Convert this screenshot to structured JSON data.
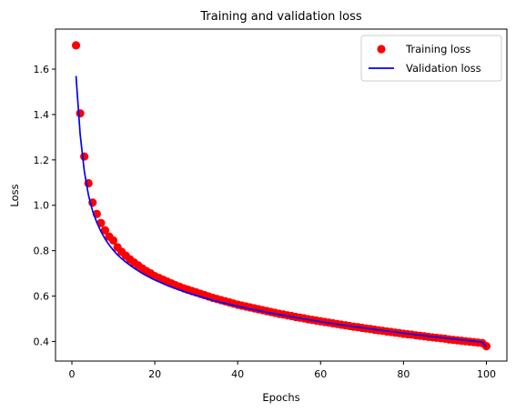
{
  "chart_data": {
    "type": "scatter",
    "title": "Training and validation loss",
    "xlabel": "Epochs",
    "ylabel": "Loss",
    "xlim": [
      -3.95,
      104.95
    ],
    "ylim": [
      0.3135,
      1.7765
    ],
    "xticks": [
      0,
      20,
      40,
      60,
      80,
      100
    ],
    "xtick_labels": [
      "0",
      "20",
      "40",
      "60",
      "80",
      "100"
    ],
    "yticks": [
      0.4,
      0.6,
      0.8,
      1.0,
      1.2,
      1.4,
      1.6
    ],
    "ytick_labels": [
      "0.4",
      "0.6",
      "0.8",
      "1.0",
      "1.2",
      "1.4",
      "1.6"
    ],
    "grid": false,
    "legend_position": "top-right",
    "series": [
      {
        "name": "Training loss",
        "style": "markers",
        "color": "#ff0000",
        "x": [
          1,
          2,
          3,
          4,
          5,
          6,
          7,
          8,
          9,
          10,
          11,
          12,
          13,
          14,
          15,
          16,
          17,
          18,
          19,
          20,
          21,
          22,
          23,
          24,
          25,
          26,
          27,
          28,
          29,
          30,
          31,
          32,
          33,
          34,
          35,
          36,
          37,
          38,
          39,
          40,
          41,
          42,
          43,
          44,
          45,
          46,
          47,
          48,
          49,
          50,
          51,
          52,
          53,
          54,
          55,
          56,
          57,
          58,
          59,
          60,
          61,
          62,
          63,
          64,
          65,
          66,
          67,
          68,
          69,
          70,
          71,
          72,
          73,
          74,
          75,
          76,
          77,
          78,
          79,
          80,
          81,
          82,
          83,
          84,
          85,
          86,
          87,
          88,
          89,
          90,
          91,
          92,
          93,
          94,
          95,
          96,
          97,
          98,
          99,
          100
        ],
        "values": [
          1.705,
          1.405,
          1.215,
          1.097,
          1.012,
          0.962,
          0.922,
          0.89,
          0.862,
          0.845,
          0.815,
          0.795,
          0.778,
          0.762,
          0.748,
          0.735,
          0.722,
          0.71,
          0.7,
          0.688,
          0.68,
          0.672,
          0.664,
          0.656,
          0.648,
          0.641,
          0.634,
          0.628,
          0.622,
          0.616,
          0.61,
          0.604,
          0.598,
          0.592,
          0.587,
          0.582,
          0.577,
          0.572,
          0.567,
          0.562,
          0.558,
          0.554,
          0.55,
          0.546,
          0.542,
          0.538,
          0.534,
          0.53,
          0.526,
          0.522,
          0.519,
          0.515,
          0.512,
          0.508,
          0.505,
          0.502,
          0.498,
          0.495,
          0.492,
          0.489,
          0.486,
          0.483,
          0.48,
          0.477,
          0.474,
          0.471,
          0.468,
          0.465,
          0.463,
          0.46,
          0.457,
          0.455,
          0.452,
          0.449,
          0.447,
          0.444,
          0.442,
          0.439,
          0.437,
          0.434,
          0.432,
          0.43,
          0.427,
          0.425,
          0.423,
          0.42,
          0.418,
          0.416,
          0.414,
          0.412,
          0.409,
          0.407,
          0.405,
          0.403,
          0.401,
          0.399,
          0.397,
          0.395,
          0.393,
          0.379
        ]
      },
      {
        "name": "Validation loss",
        "style": "line",
        "color": "#0000ff",
        "x": [
          1,
          2,
          3,
          4,
          5,
          6,
          7,
          8,
          9,
          10,
          11,
          12,
          13,
          14,
          15,
          16,
          17,
          18,
          19,
          20,
          21,
          22,
          23,
          24,
          25,
          26,
          27,
          28,
          29,
          30,
          31,
          32,
          33,
          34,
          35,
          36,
          37,
          38,
          39,
          40,
          41,
          42,
          43,
          44,
          45,
          46,
          47,
          48,
          49,
          50,
          51,
          52,
          53,
          54,
          55,
          56,
          57,
          58,
          59,
          60,
          61,
          62,
          63,
          64,
          65,
          66,
          67,
          68,
          69,
          70,
          71,
          72,
          73,
          74,
          75,
          76,
          77,
          78,
          79,
          80,
          81,
          82,
          83,
          84,
          85,
          86,
          87,
          88,
          89,
          90,
          91,
          92,
          93,
          94,
          95,
          96,
          97,
          98,
          99,
          100
        ],
        "values": [
          1.57,
          1.312,
          1.15,
          1.045,
          0.975,
          0.925,
          0.885,
          0.852,
          0.825,
          0.802,
          0.782,
          0.765,
          0.75,
          0.736,
          0.723,
          0.711,
          0.7,
          0.69,
          0.68,
          0.671,
          0.663,
          0.655,
          0.647,
          0.64,
          0.633,
          0.627,
          0.62,
          0.614,
          0.608,
          0.603,
          0.597,
          0.592,
          0.587,
          0.582,
          0.577,
          0.572,
          0.568,
          0.564,
          0.559,
          0.555,
          0.551,
          0.547,
          0.543,
          0.539,
          0.536,
          0.532,
          0.528,
          0.525,
          0.522,
          0.518,
          0.515,
          0.512,
          0.508,
          0.505,
          0.502,
          0.499,
          0.496,
          0.493,
          0.49,
          0.487,
          0.484,
          0.481,
          0.479,
          0.476,
          0.473,
          0.471,
          0.468,
          0.465,
          0.463,
          0.46,
          0.458,
          0.455,
          0.453,
          0.45,
          0.448,
          0.446,
          0.443,
          0.441,
          0.439,
          0.436,
          0.434,
          0.432,
          0.43,
          0.428,
          0.425,
          0.423,
          0.421,
          0.419,
          0.417,
          0.415,
          0.413,
          0.411,
          0.409,
          0.407,
          0.405,
          0.403,
          0.401,
          0.399,
          0.397,
          0.376
        ]
      }
    ]
  }
}
